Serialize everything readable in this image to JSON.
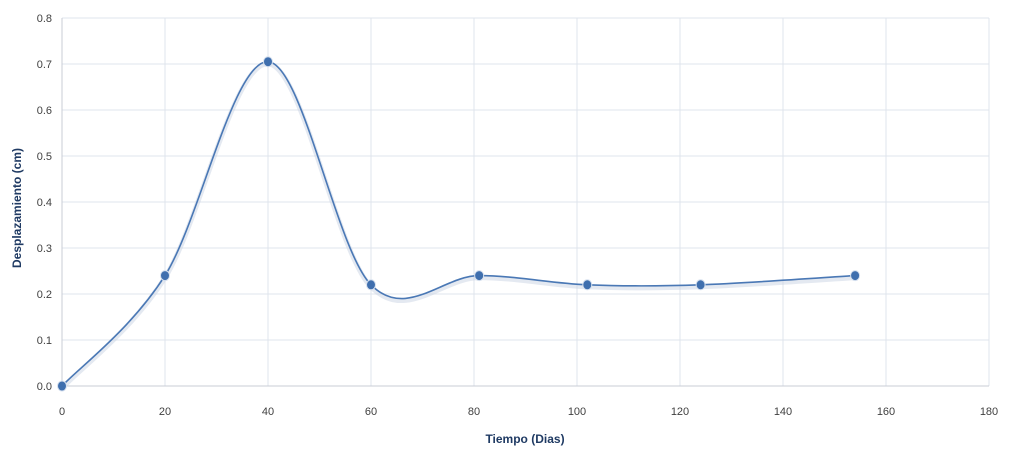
{
  "chart_data": {
    "type": "line",
    "title": "",
    "xlabel": "Tiempo (Dias)",
    "ylabel": "Desplazamiento  (cm)",
    "xlim": [
      0,
      180
    ],
    "ylim": [
      0,
      0.8
    ],
    "x_ticks": [
      0,
      20,
      40,
      60,
      80,
      100,
      120,
      140,
      160,
      180
    ],
    "y_ticks": [
      0,
      0.1,
      0.2,
      0.3,
      0.4,
      0.5,
      0.6,
      0.7,
      0.8
    ],
    "x_tick_labels": [
      "0",
      "20",
      "40",
      "60",
      "80",
      "100",
      "120",
      "140",
      "160",
      "180"
    ],
    "y_tick_labels": [
      "0.0",
      "0.1",
      "0.2",
      "0.3",
      "0.4",
      "0.5",
      "0.6",
      "0.7",
      "0.8"
    ],
    "grid": true,
    "smooth": true,
    "colors": {
      "series": "#4a78b5",
      "marker": "#3f6fae"
    },
    "series": [
      {
        "x": [
          0,
          20,
          40,
          60,
          81,
          102,
          124,
          154
        ],
        "y": [
          0.0,
          0.24,
          0.705,
          0.22,
          0.24,
          0.22,
          0.22,
          0.24
        ]
      }
    ]
  }
}
